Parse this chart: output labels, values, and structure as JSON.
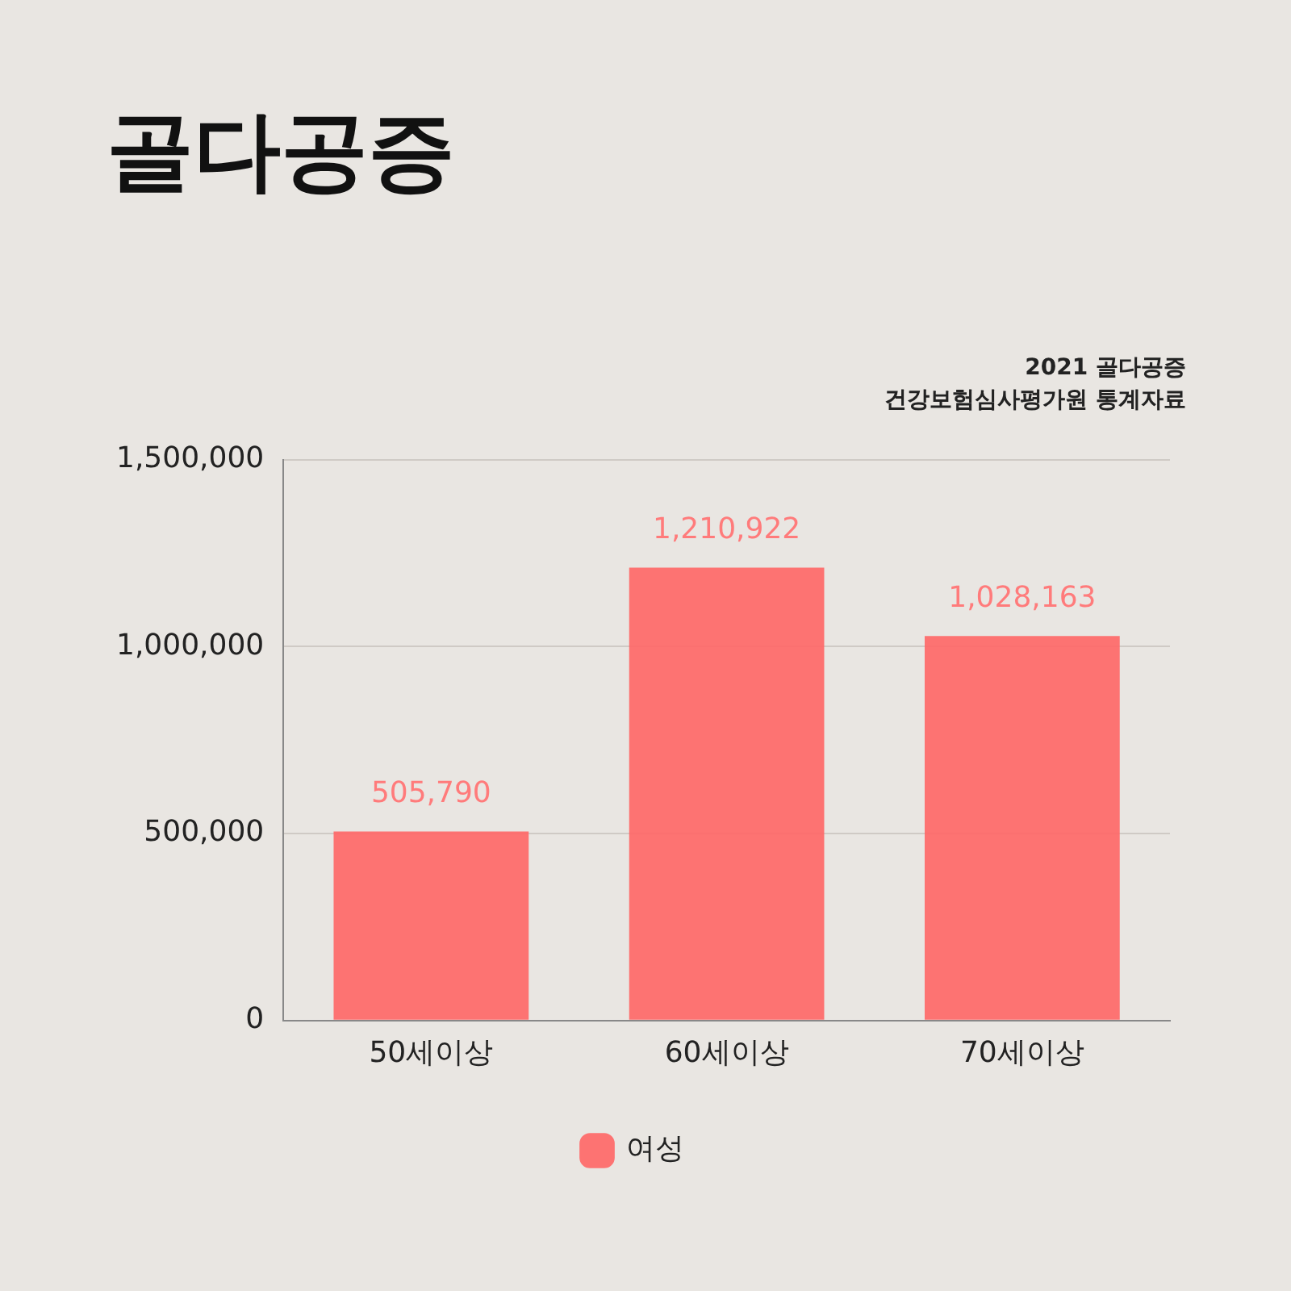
{
  "chart_data": {
    "type": "bar",
    "title": "골다공증",
    "annotations": [
      "2021 골다공증",
      "건강보험심사평가원 통계자료"
    ],
    "categories": [
      "50세이상",
      "60세이상",
      "70세이상"
    ],
    "series": [
      {
        "name": "여성",
        "color": "#ff6666",
        "values": [
          505790,
          1210922,
          1028163
        ],
        "value_labels": [
          "505,790",
          "1,210,922",
          "1,028,163"
        ]
      }
    ],
    "ylim": [
      0,
      1500000
    ],
    "yticks": [
      0,
      {
        "value": 500000,
        "label": "500,000"
      },
      {
        "value": 1000000,
        "label": "1,000,000"
      },
      {
        "value": 1500000,
        "label": "1,500,000"
      }
    ],
    "grid": "y",
    "legend": "bottom"
  }
}
